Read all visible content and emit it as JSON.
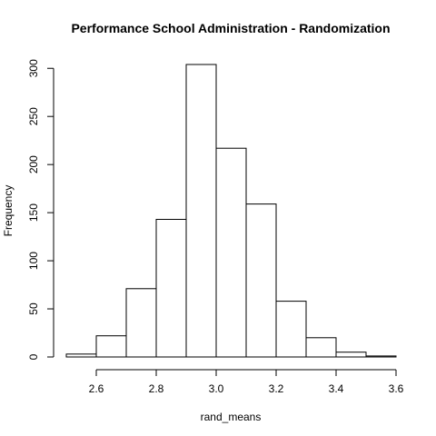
{
  "chart_data": {
    "type": "bar",
    "title": "Performance School Administration - Randomization",
    "xlabel": "rand_means",
    "ylabel": "Frequency",
    "bins": [
      {
        "start": 2.5,
        "end": 2.6,
        "count": 3
      },
      {
        "start": 2.6,
        "end": 2.7,
        "count": 22
      },
      {
        "start": 2.7,
        "end": 2.8,
        "count": 71
      },
      {
        "start": 2.8,
        "end": 2.9,
        "count": 143
      },
      {
        "start": 2.9,
        "end": 3.0,
        "count": 304
      },
      {
        "start": 3.0,
        "end": 3.1,
        "count": 217
      },
      {
        "start": 3.1,
        "end": 3.2,
        "count": 159
      },
      {
        "start": 3.2,
        "end": 3.3,
        "count": 58
      },
      {
        "start": 3.3,
        "end": 3.4,
        "count": 20
      },
      {
        "start": 3.4,
        "end": 3.5,
        "count": 5
      },
      {
        "start": 3.5,
        "end": 3.6,
        "count": 1
      }
    ],
    "x_ticks": [
      "2.6",
      "2.8",
      "3.0",
      "3.2",
      "3.4",
      "3.6"
    ],
    "y_ticks": [
      "0",
      "50",
      "100",
      "150",
      "200",
      "250",
      "300"
    ],
    "xlim": [
      2.5,
      3.6
    ],
    "ylim": [
      0,
      304
    ],
    "grid": false,
    "colors": {
      "bar_fill": "#ffffff",
      "bar_stroke": "#000000"
    }
  }
}
